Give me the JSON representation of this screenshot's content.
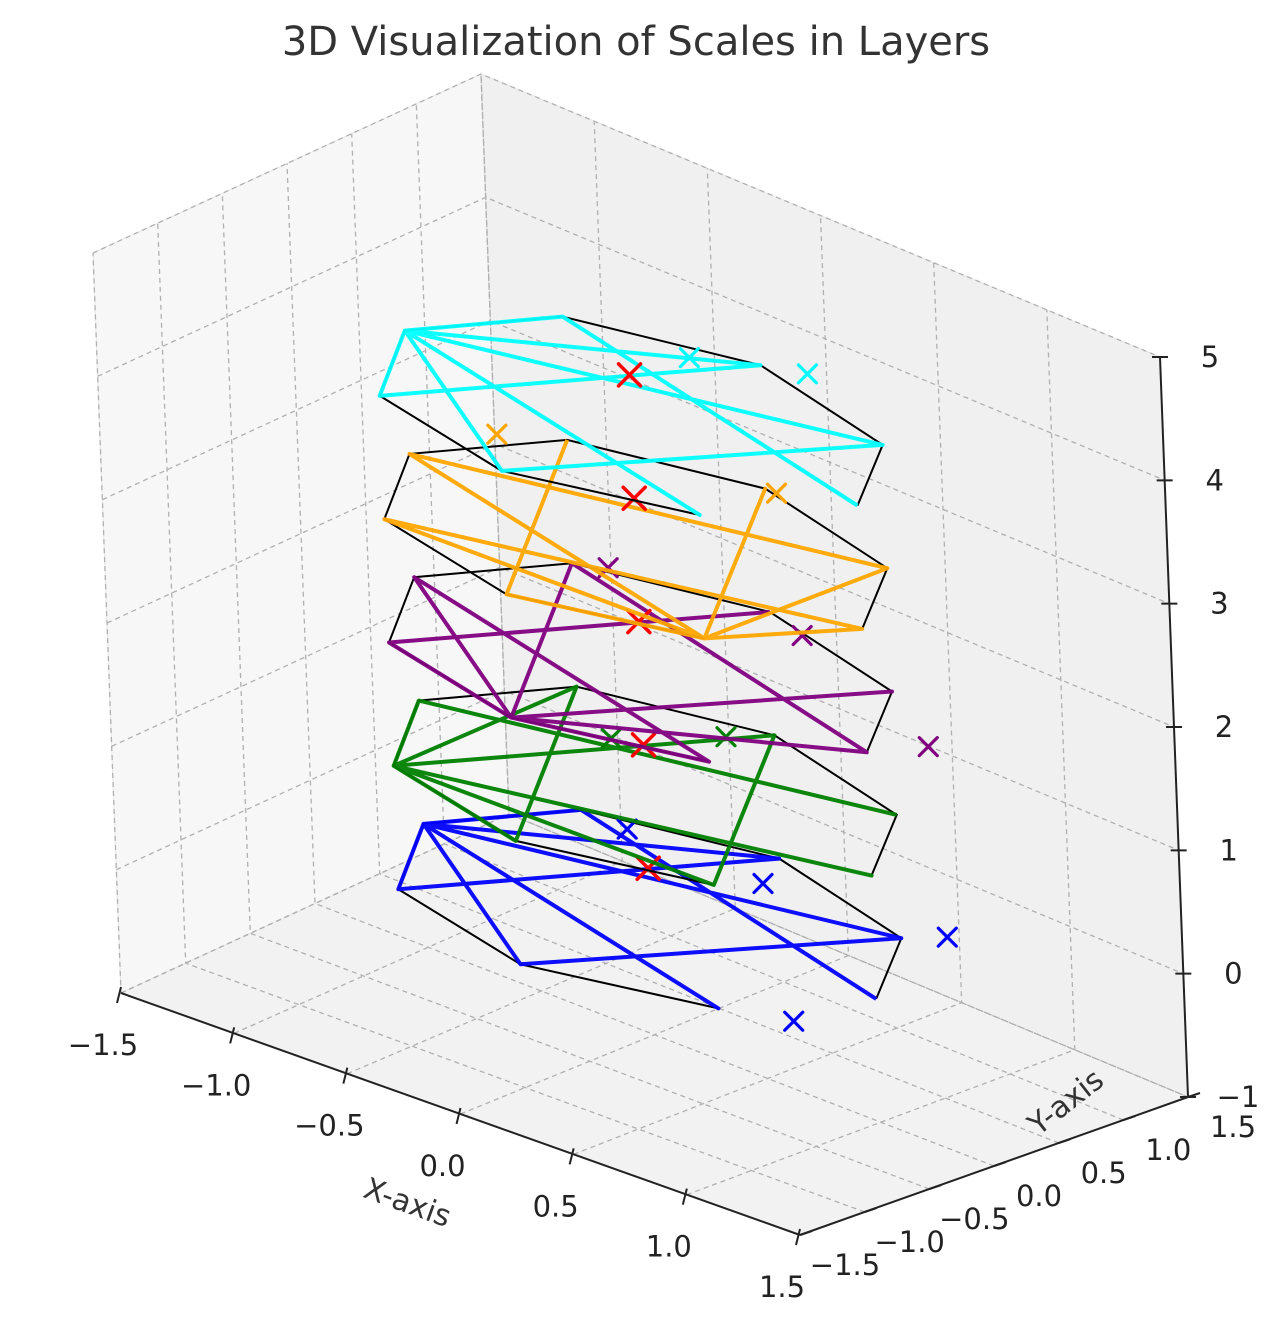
{
  "chart_data": {
    "type": "scatter",
    "title": "3D Visualization of Scales in Layers",
    "xlabel": "X-axis",
    "ylabel": "Y-axis",
    "zlabel": "",
    "xlim": [
      -1.5,
      1.5
    ],
    "ylim": [
      -1.5,
      1.5
    ],
    "zlim": [
      -1,
      5
    ],
    "x_ticks": [
      "−1.5",
      "−1.0",
      "−0.5",
      "0.0",
      "0.5",
      "1.0",
      "1.5"
    ],
    "y_ticks": [
      "−1.5",
      "−1.0",
      "−0.5",
      "0.0",
      "0.5",
      "1.0",
      "1.5"
    ],
    "z_ticks": [
      "−1",
      "0",
      "1",
      "2",
      "3",
      "4",
      "5"
    ],
    "grid": true,
    "outline_color": "#000000",
    "center_marker_color": "#ff0000",
    "layers": [
      {
        "z": 0,
        "color": "#0000ff",
        "scatter": [
          [
            -0.5,
            0.7
          ],
          [
            0.95,
            -0.55
          ],
          [
            0.1,
            0.7
          ],
          [
            0.8,
            0.9
          ]
        ]
      },
      {
        "z": 1,
        "color": "#008000",
        "scatter": [
          [
            -0.35,
            0.35
          ],
          [
            -0.1,
            0.8
          ]
        ]
      },
      {
        "z": 2,
        "color": "#800080",
        "scatter": [
          [
            -0.6,
            0.8
          ],
          [
            0.2,
            0.9
          ],
          [
            1.1,
            0.3
          ]
        ]
      },
      {
        "z": 3,
        "color": "#ffa500",
        "scatter": [
          [
            -0.9,
            0.5
          ],
          [
            0.05,
            1.0
          ]
        ]
      },
      {
        "z": 4,
        "color": "#00ffff",
        "scatter": [
          [
            -0.2,
            0.8
          ],
          [
            0.15,
            1.1
          ]
        ]
      }
    ]
  }
}
